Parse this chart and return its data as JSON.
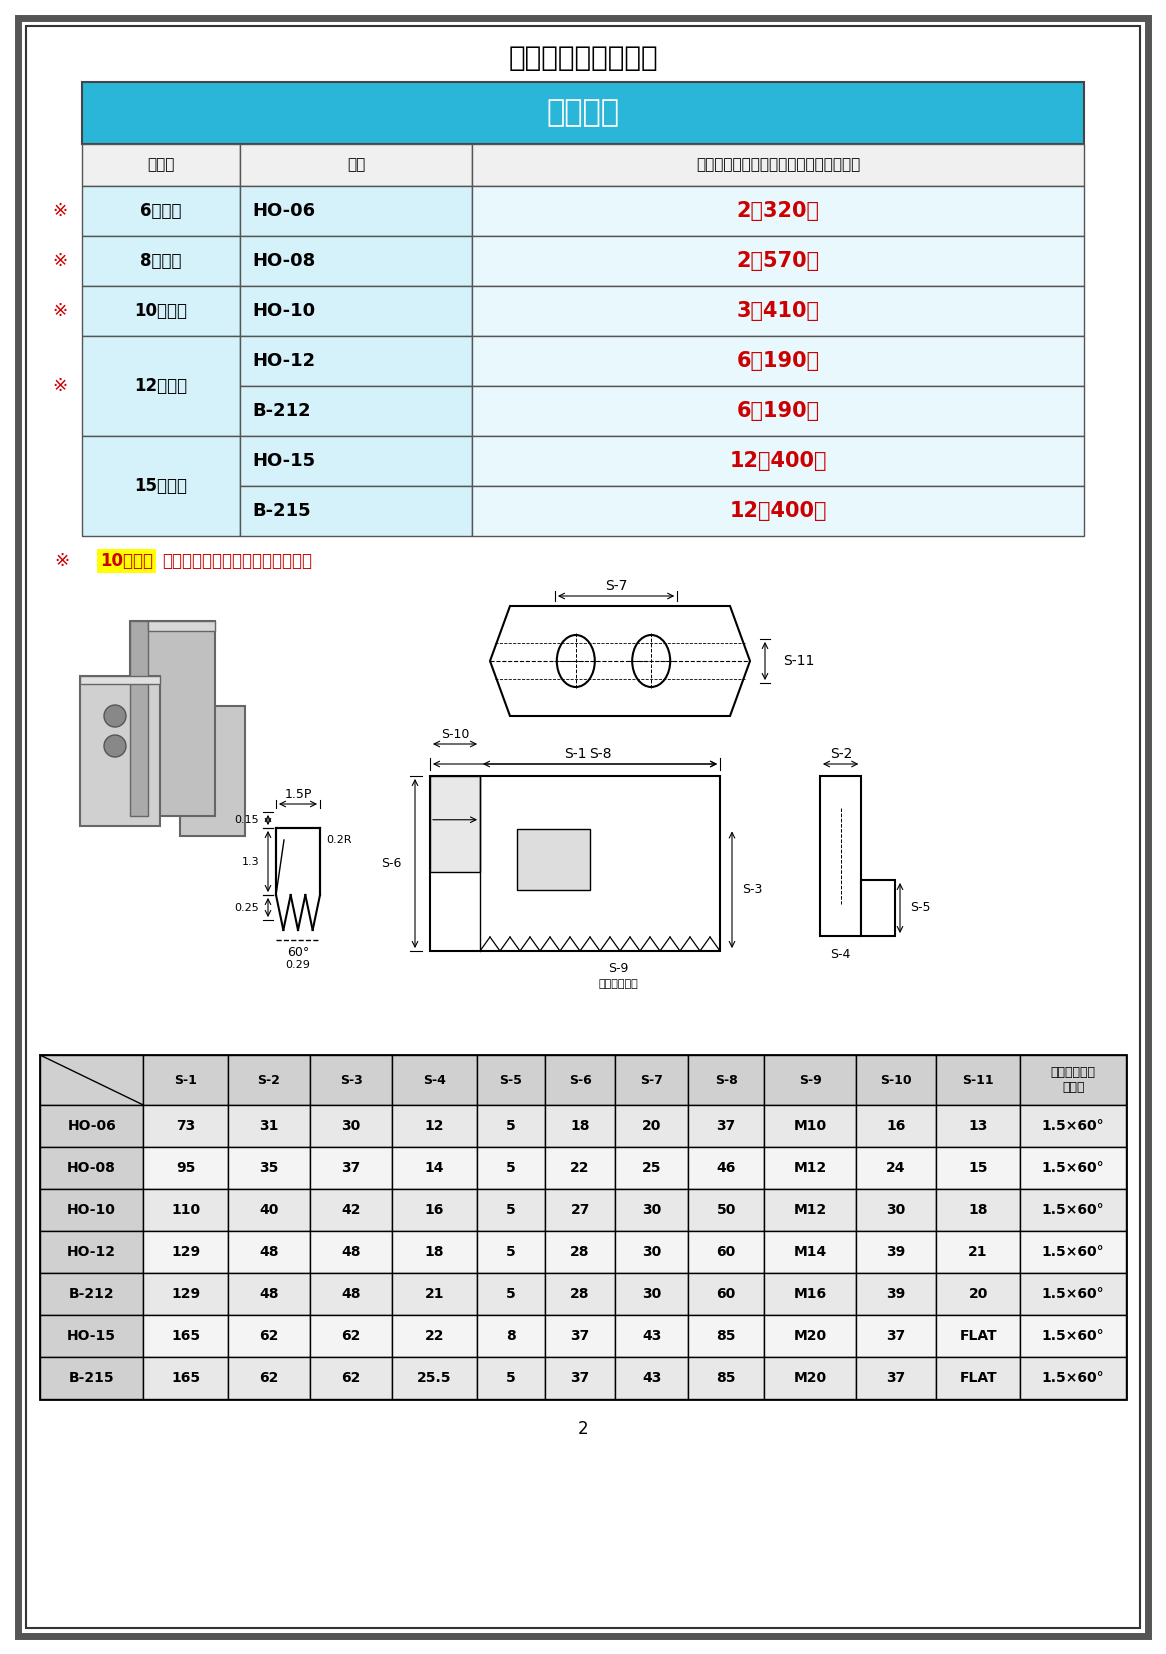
{
  "title": "生爪価格表＆寸法表",
  "subtitle": "標準生爪",
  "price_headers": [
    "インチ",
    "品番",
    "生爪１セット（３個入り）価格（税別）"
  ],
  "price_rows": [
    {
      "inch": "6インチ",
      "model": "HO-06",
      "price": "2，320円",
      "mark": true,
      "span": 1
    },
    {
      "inch": "8インチ",
      "model": "HO-08",
      "price": "2，570円",
      "mark": true,
      "span": 1
    },
    {
      "inch": "10インチ",
      "model": "HO-10",
      "price": "3，410円",
      "mark": true,
      "span": 1
    },
    {
      "inch": "12インチ",
      "model": "HO-12",
      "price": "6，190円",
      "mark": true,
      "span": 2
    },
    {
      "inch": "",
      "model": "B-212",
      "price": "6，190円",
      "mark": true,
      "span": 0
    },
    {
      "inch": "15インチ",
      "model": "HO-15",
      "price": "12，400円",
      "mark": false,
      "span": 2
    },
    {
      "inch": "",
      "model": "B-215",
      "price": "12，400円",
      "mark": false,
      "span": 0
    }
  ],
  "note_plain": "で１セットサービスの商品です。",
  "note_highlight": "10セット",
  "dim_headers": [
    "",
    "S-1",
    "S-2",
    "S-3",
    "S-4",
    "S-5",
    "S-6",
    "S-7",
    "S-8",
    "S-9",
    "S-10",
    "S-11",
    "セレーション\nピッチ"
  ],
  "dim_rows": [
    [
      "HO-06",
      "73",
      "31",
      "30",
      "12",
      "5",
      "18",
      "20",
      "37",
      "M10",
      "16",
      "13",
      "1.5×60°"
    ],
    [
      "HO-08",
      "95",
      "35",
      "37",
      "14",
      "5",
      "22",
      "25",
      "46",
      "M12",
      "24",
      "15",
      "1.5×60°"
    ],
    [
      "HO-10",
      "110",
      "40",
      "42",
      "16",
      "5",
      "27",
      "30",
      "50",
      "M12",
      "30",
      "18",
      "1.5×60°"
    ],
    [
      "HO-12",
      "129",
      "48",
      "48",
      "18",
      "5",
      "28",
      "30",
      "60",
      "M14",
      "39",
      "21",
      "1.5×60°"
    ],
    [
      "B-212",
      "129",
      "48",
      "48",
      "21",
      "5",
      "28",
      "30",
      "60",
      "M16",
      "39",
      "20",
      "1.5×60°"
    ],
    [
      "HO-15",
      "165",
      "62",
      "62",
      "22",
      "8",
      "37",
      "43",
      "85",
      "M20",
      "37",
      "FLAT",
      "1.5×60°"
    ],
    [
      "B-215",
      "165",
      "62",
      "62",
      "25.5",
      "5",
      "37",
      "43",
      "85",
      "M20",
      "37",
      "FLAT",
      "1.5×60°"
    ]
  ],
  "page_num": "2",
  "header_blue": "#29b6d8",
  "light_blue1": "#d5f1f9",
  "light_blue2": "#c0eaf6",
  "price_col_bg": "#e8f8fd",
  "col_hdr_bg": "#f0f0f0",
  "dim_hdr_bg": "#d0d0d0",
  "dim_even": "#e8e8e8",
  "dim_odd": "#f4f4f4",
  "dim_name_bg": "#d0d0d0",
  "red": "#cc0000",
  "yellow": "#ffff00",
  "border_dark": "#555555",
  "border_med": "#888888"
}
